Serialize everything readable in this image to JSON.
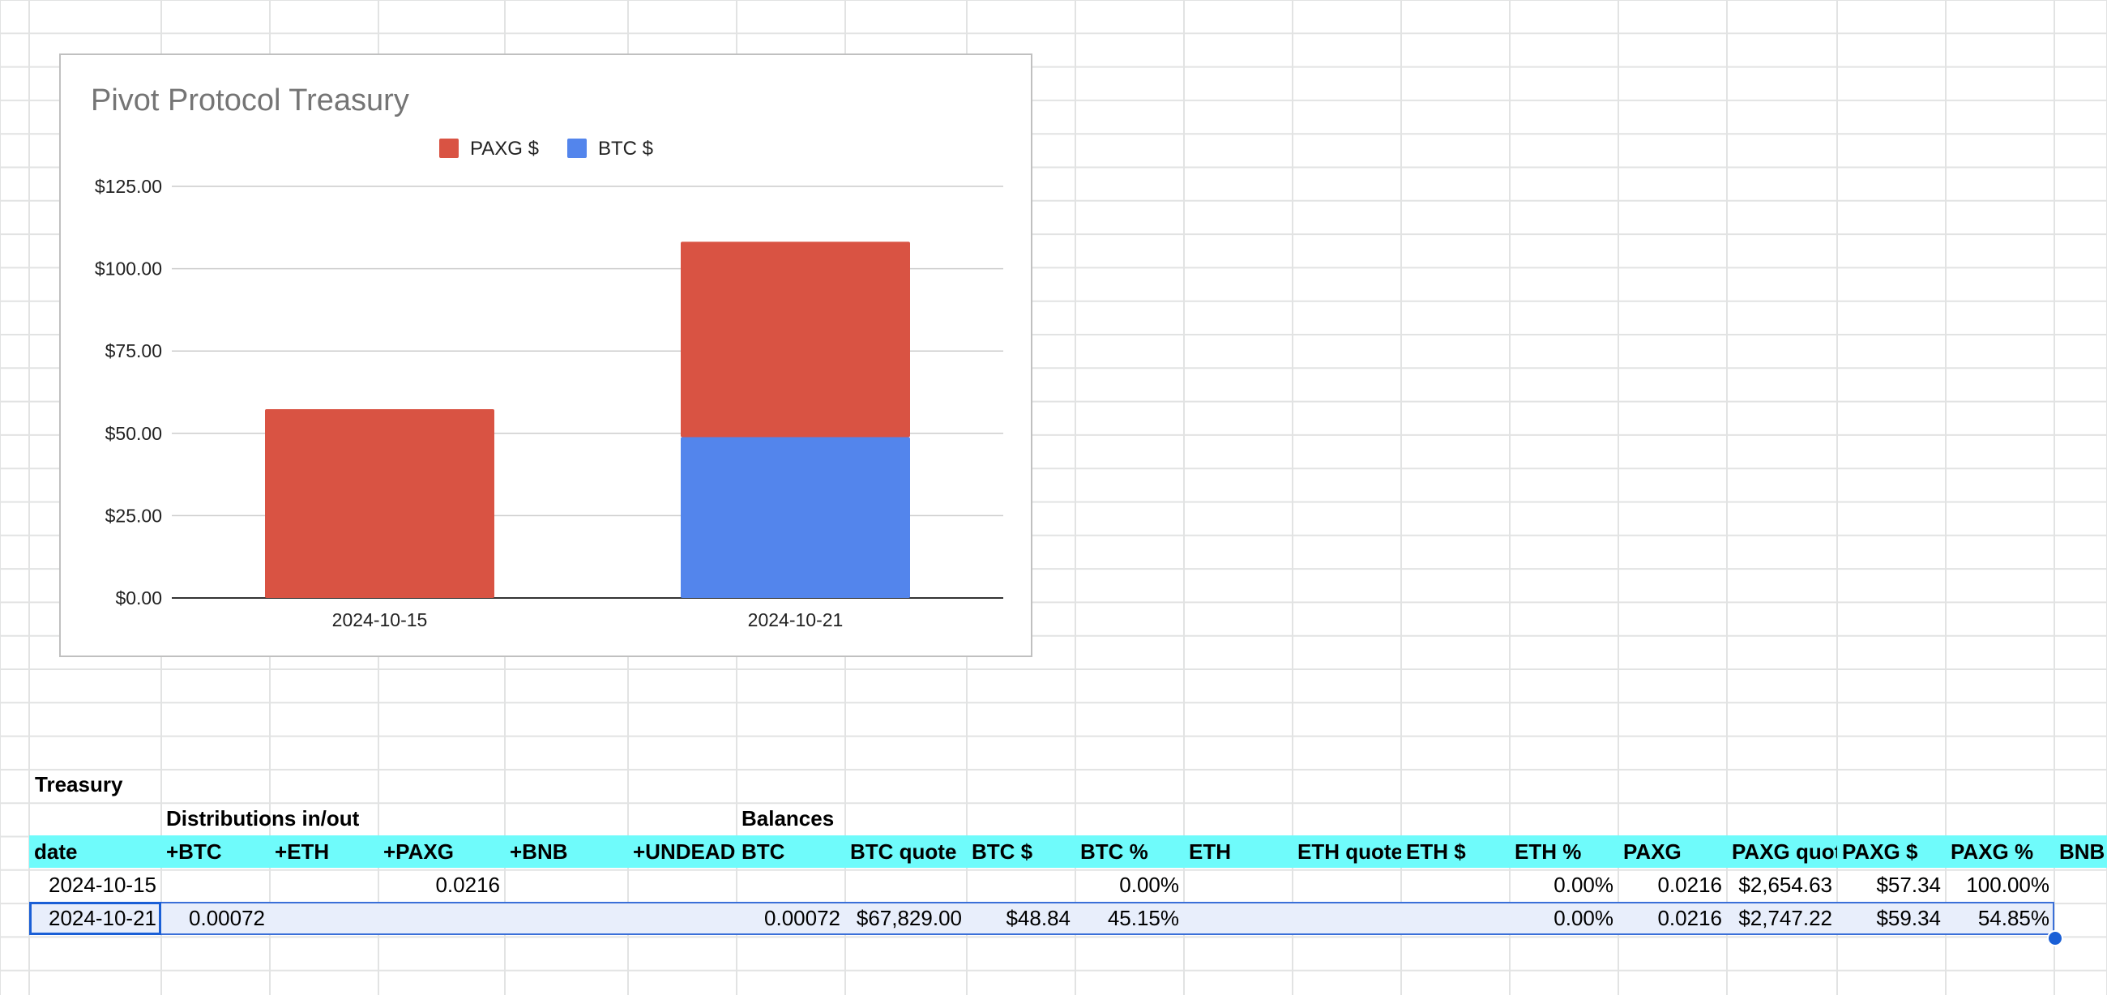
{
  "sheet": {
    "treasury_label": "Treasury",
    "distributions_label": "Distributions in/out",
    "balances_label": "Balances",
    "headers": [
      "date",
      "+BTC",
      "+ETH",
      "+PAXG",
      "+BNB",
      "+UNDEAD",
      "BTC",
      "BTC quote",
      "BTC $",
      "BTC %",
      "ETH",
      "ETH quote",
      "ETH $",
      "ETH %",
      "PAXG",
      "PAXG quote",
      "PAXG $",
      "PAXG %",
      "BNB"
    ],
    "rows": [
      [
        "2024-10-15",
        "",
        "",
        "0.0216",
        "",
        "",
        "",
        "",
        "",
        "0.00%",
        "",
        "",
        "",
        "0.00%",
        "0.0216",
        "$2,654.63",
        "$57.34",
        "100.00%",
        ""
      ],
      [
        "2024-10-21",
        "0.00072",
        "",
        "",
        "",
        "",
        "0.00072",
        "$67,829.00",
        "$48.84",
        "45.15%",
        "",
        "",
        "",
        "0.00%",
        "0.0216",
        "$2,747.22",
        "$59.34",
        "54.85%",
        ""
      ]
    ],
    "header_color": "#6ffbfb",
    "selection_color": "#e8eefb"
  },
  "chart_data": {
    "type": "bar",
    "stacked": true,
    "title": "Pivot Protocol Treasury",
    "categories": [
      "2024-10-15",
      "2024-10-21"
    ],
    "series": [
      {
        "name": "BTC $",
        "color": "#5385ec",
        "values": [
          0,
          48.84
        ]
      },
      {
        "name": "PAXG $",
        "color": "#d95343",
        "values": [
          57.34,
          59.34
        ]
      }
    ],
    "legend": [
      "PAXG $",
      "BTC $"
    ],
    "legend_position": "top",
    "ylim": [
      0,
      125
    ],
    "yticks": [
      "$0.00",
      "$25.00",
      "$50.00",
      "$75.00",
      "$100.00",
      "$125.00"
    ],
    "grid": true
  }
}
